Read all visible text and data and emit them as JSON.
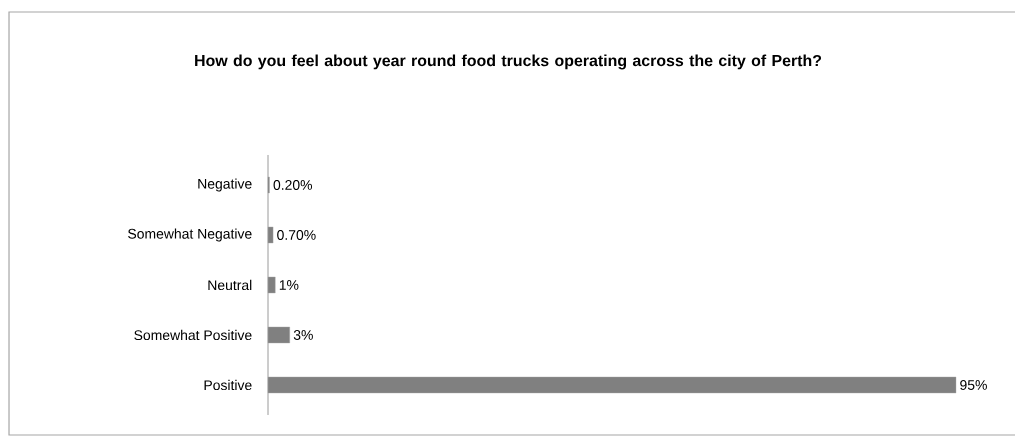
{
  "chart_data": {
    "type": "bar",
    "orientation": "horizontal",
    "title": "How do you feel about year round food trucks operating across the city of Perth?",
    "categories": [
      "Negative",
      "Somewhat Negative",
      "Neutral",
      "Somewhat Positive",
      "Positive"
    ],
    "values": [
      0.2,
      0.7,
      1,
      3,
      95
    ],
    "value_labels": [
      "0.20%",
      "0.70%",
      "1%",
      "3%",
      "95%"
    ],
    "color": "#808080"
  }
}
